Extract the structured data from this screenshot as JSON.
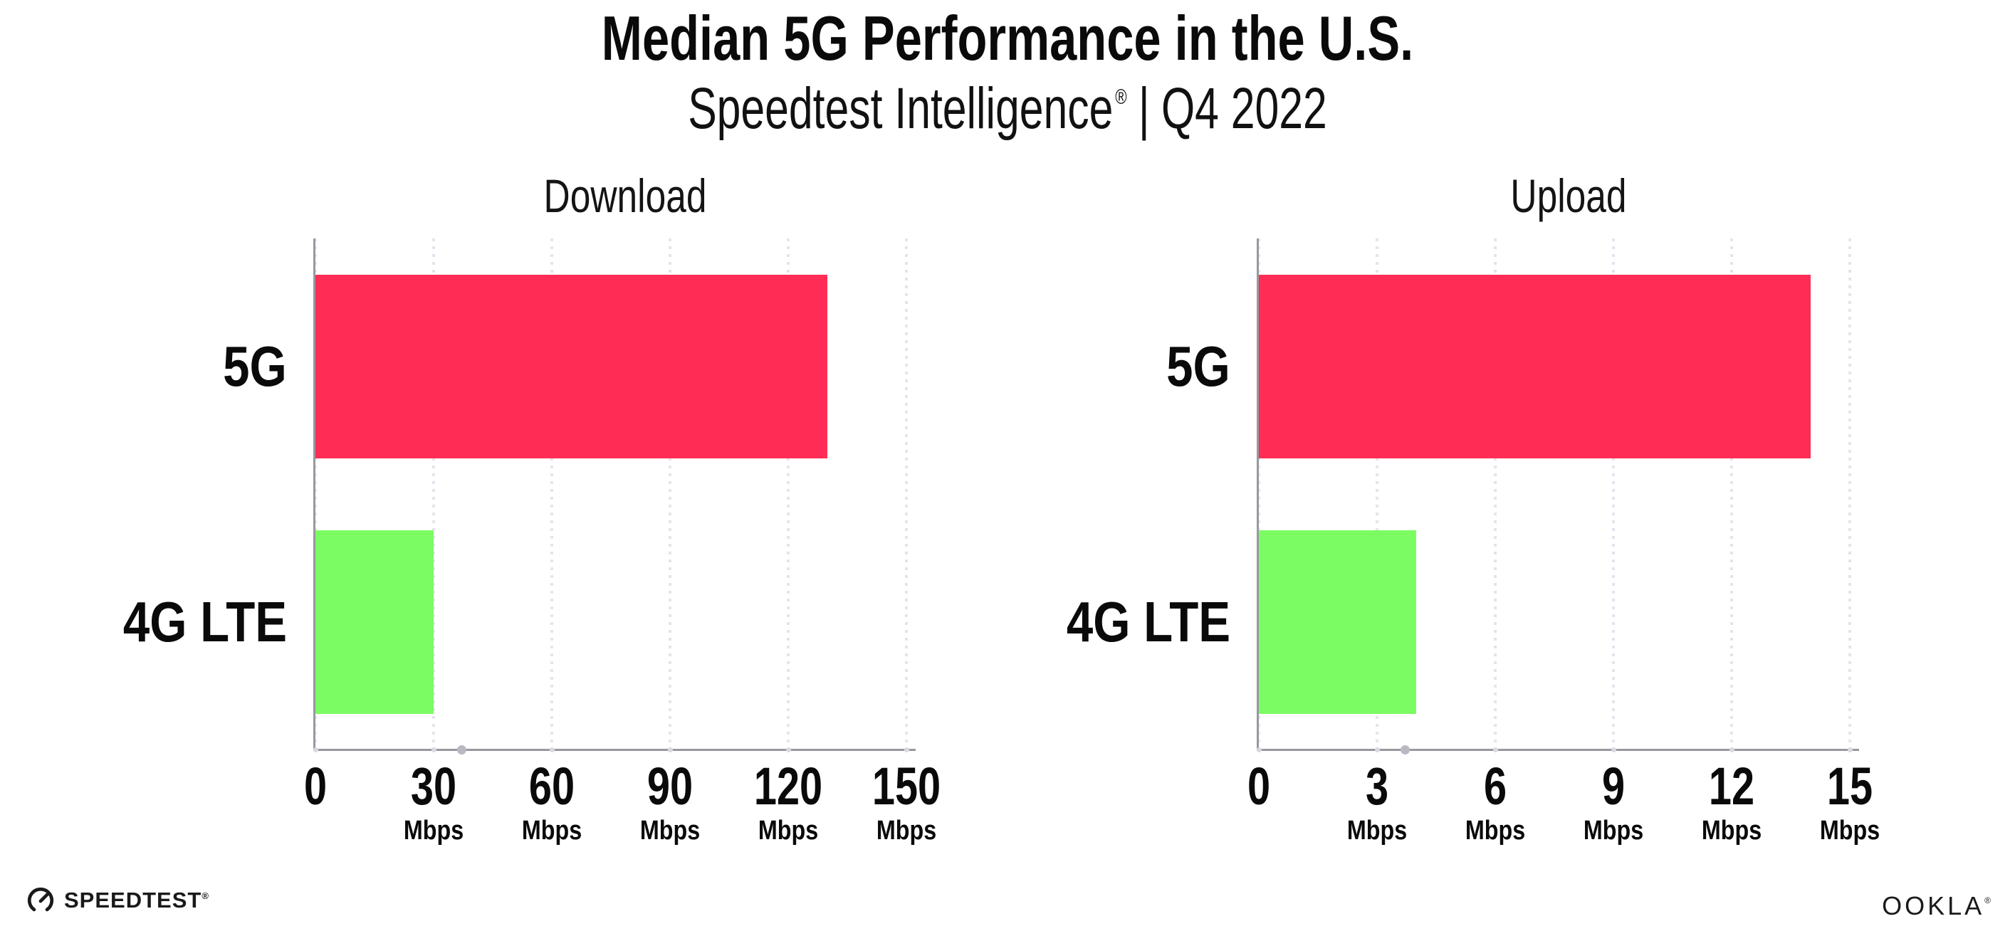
{
  "header": {
    "title": "Median 5G Performance in the U.S.",
    "subtitle_brand": "Speedtest Intelligence",
    "subtitle_regmark": "®",
    "subtitle_separator": "|",
    "subtitle_period": "Q4 2022"
  },
  "chart_data": [
    {
      "type": "bar",
      "orientation": "horizontal",
      "title": "Download",
      "categories": [
        "5G",
        "4G LTE"
      ],
      "values": [
        130,
        30
      ],
      "unit": "Mbps",
      "xlim": [
        0,
        150
      ],
      "ticks": [
        0,
        30,
        60,
        90,
        120,
        150
      ],
      "grid": "dotted-vertical",
      "bar_colors": [
        "#FF2D55",
        "#7CFC63"
      ]
    },
    {
      "type": "bar",
      "orientation": "horizontal",
      "title": "Upload",
      "categories": [
        "5G",
        "4G LTE"
      ],
      "values": [
        14,
        4
      ],
      "unit": "Mbps",
      "xlim": [
        0,
        15
      ],
      "ticks": [
        0,
        3,
        6,
        9,
        12,
        15
      ],
      "grid": "dotted-vertical",
      "bar_colors": [
        "#FF2D55",
        "#7CFC63"
      ]
    }
  ],
  "footer": {
    "speedtest_label": "SPEEDTEST",
    "speedtest_mark": "®",
    "ookla_label": "OOKLA",
    "ookla_mark": "®"
  },
  "style": {
    "bar_5g_color": "#FF2D55",
    "bar_4g_color": "#7CFC63",
    "gridline_color": "#E4E4EF",
    "axis_color": "#98989F",
    "text_color": "#0a0a0a",
    "background_color": "#ffffff"
  }
}
